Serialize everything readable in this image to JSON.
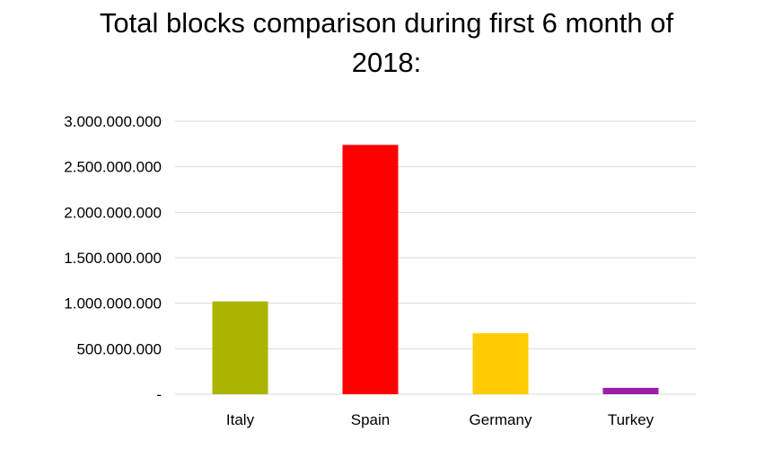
{
  "chart_data": {
    "type": "bar",
    "title_lines": [
      "Total blocks comparison during first 6 month of",
      "2018:"
    ],
    "categories": [
      "Italy",
      "Spain",
      "Germany",
      "Turkey"
    ],
    "values": [
      1020000000,
      2740000000,
      670000000,
      70000000
    ],
    "colors": [
      "#a9b500",
      "#ff0000",
      "#ffcc00",
      "#9b1fa6"
    ],
    "yticks": [
      {
        "value": 0,
        "label": "-"
      },
      {
        "value": 500000000,
        "label": "500.000.000"
      },
      {
        "value": 1000000000,
        "label": "1.000.000.000"
      },
      {
        "value": 1500000000,
        "label": "1.500.000.000"
      },
      {
        "value": 2000000000,
        "label": "2.000.000.000"
      },
      {
        "value": 2500000000,
        "label": "2.500.000.000"
      },
      {
        "value": 3000000000,
        "label": "3.000.000.000"
      }
    ],
    "ylim": [
      0,
      3000000000
    ],
    "grid": true,
    "legend": "none"
  }
}
